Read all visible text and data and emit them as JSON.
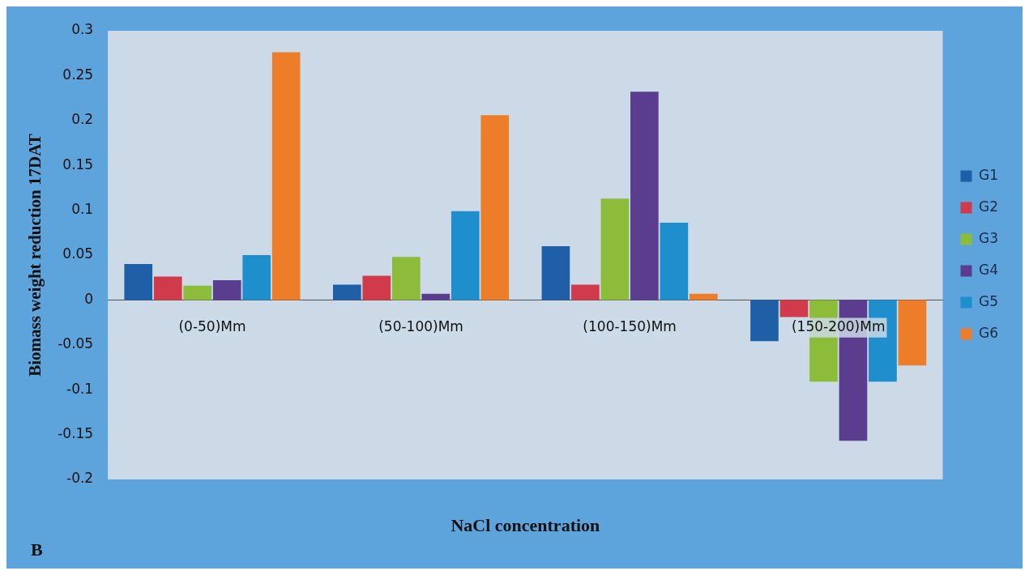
{
  "chart_data": {
    "type": "bar",
    "xlabel": "NaCl concentration",
    "ylabel": "Biomass weight reduction 17DAT",
    "annotations": [
      "B"
    ],
    "categories": [
      "(0-50)Mm",
      "(50-100)Mm",
      "(100-150)Mm",
      "(150-200)Mm"
    ],
    "series": [
      {
        "name": "G1",
        "color": "#1f5fa8",
        "values": [
          0.04,
          0.017,
          0.06,
          -0.046
        ]
      },
      {
        "name": "G2",
        "color": "#d03a4a",
        "values": [
          0.026,
          0.027,
          0.017,
          -0.019
        ]
      },
      {
        "name": "G3",
        "color": "#8dbb3a",
        "values": [
          0.016,
          0.048,
          0.113,
          -0.091
        ]
      },
      {
        "name": "G4",
        "color": "#5a3d8f",
        "values": [
          0.022,
          0.007,
          0.232,
          -0.157
        ]
      },
      {
        "name": "G5",
        "color": "#1e8fcc",
        "values": [
          0.05,
          0.099,
          0.086,
          -0.091
        ]
      },
      {
        "name": "G6",
        "color": "#ee7d2a",
        "values": [
          0.276,
          0.206,
          0.007,
          -0.073
        ]
      }
    ],
    "ylim": [
      -0.2,
      0.3
    ],
    "yticks": [
      -0.2,
      -0.15,
      -0.1,
      -0.05,
      0,
      0.05,
      0.1,
      0.15,
      0.2,
      0.25,
      0.3
    ],
    "grid": false,
    "legend": "right"
  }
}
